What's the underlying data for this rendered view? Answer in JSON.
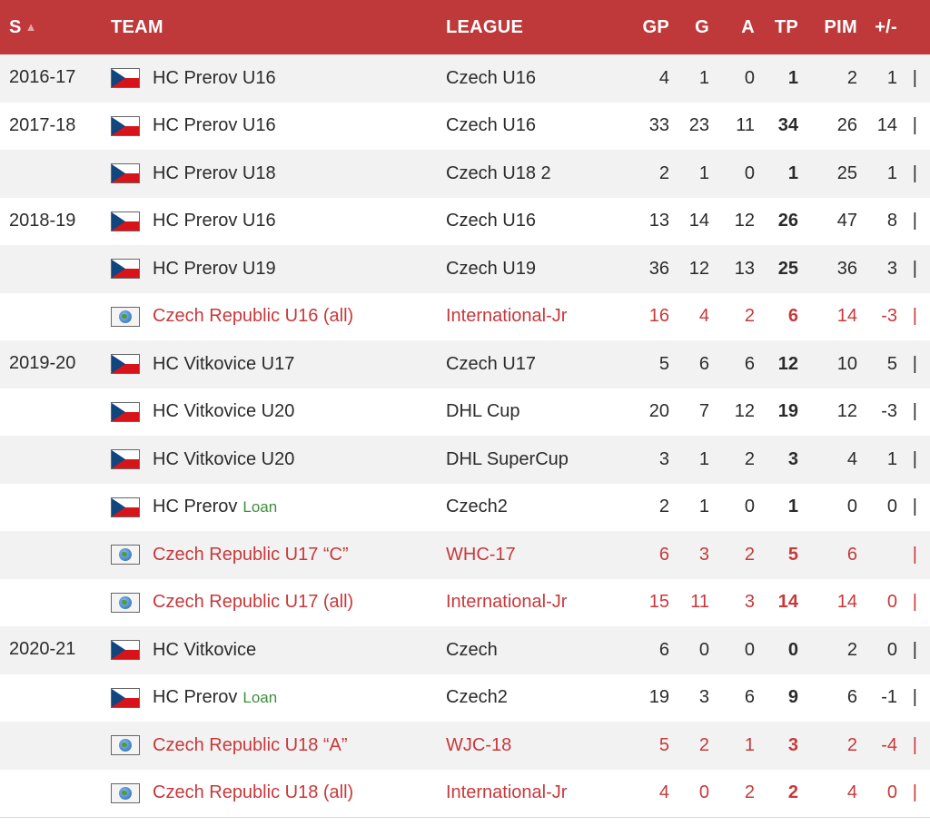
{
  "header": {
    "season": "S",
    "team": "TEAM",
    "league": "LEAGUE",
    "gp": "GP",
    "g": "G",
    "a": "A",
    "tp": "TP",
    "pim": "PIM",
    "plusminus": "+/-",
    "sort_icon": "sort-asc-icon"
  },
  "rows": [
    {
      "season": "2016-17",
      "flag": "czech-flag-icon",
      "team": "HC Prerov U16",
      "loan": "",
      "league": "Czech U16",
      "gp": "4",
      "g": "1",
      "a": "0",
      "tp": "1",
      "pim": "2",
      "pm": "1",
      "bar": "|"
    },
    {
      "season": "2017-18",
      "flag": "czech-flag-icon",
      "team": "HC Prerov U16",
      "loan": "",
      "league": "Czech U16",
      "gp": "33",
      "g": "23",
      "a": "11",
      "tp": "34",
      "pim": "26",
      "pm": "14",
      "bar": "|"
    },
    {
      "season": "",
      "flag": "czech-flag-icon",
      "team": "HC Prerov U18",
      "loan": "",
      "league": "Czech U18 2",
      "gp": "2",
      "g": "1",
      "a": "0",
      "tp": "1",
      "pim": "25",
      "pm": "1",
      "bar": "|"
    },
    {
      "season": "2018-19",
      "flag": "czech-flag-icon",
      "team": "HC Prerov U16",
      "loan": "",
      "league": "Czech U16",
      "gp": "13",
      "g": "14",
      "a": "12",
      "tp": "26",
      "pim": "47",
      "pm": "8",
      "bar": "|"
    },
    {
      "season": "",
      "flag": "czech-flag-icon",
      "team": "HC Prerov U19",
      "loan": "",
      "league": "Czech U19",
      "gp": "36",
      "g": "12",
      "a": "13",
      "tp": "25",
      "pim": "36",
      "pm": "3",
      "bar": "|"
    },
    {
      "season": "",
      "flag": "globe-icon",
      "team": "Czech Republic U16 (all)",
      "loan": "",
      "league": "International-Jr",
      "gp": "16",
      "g": "4",
      "a": "2",
      "tp": "6",
      "pim": "14",
      "pm": "-3",
      "bar": "|",
      "intl": true
    },
    {
      "season": "2019-20",
      "flag": "czech-flag-icon",
      "team": "HC Vitkovice U17",
      "loan": "",
      "league": "Czech U17",
      "gp": "5",
      "g": "6",
      "a": "6",
      "tp": "12",
      "pim": "10",
      "pm": "5",
      "bar": "|"
    },
    {
      "season": "",
      "flag": "czech-flag-icon",
      "team": "HC Vitkovice U20",
      "loan": "",
      "league": "DHL Cup",
      "gp": "20",
      "g": "7",
      "a": "12",
      "tp": "19",
      "pim": "12",
      "pm": "-3",
      "bar": "|"
    },
    {
      "season": "",
      "flag": "czech-flag-icon",
      "team": "HC Vitkovice U20",
      "loan": "",
      "league": "DHL SuperCup",
      "gp": "3",
      "g": "1",
      "a": "2",
      "tp": "3",
      "pim": "4",
      "pm": "1",
      "bar": "|"
    },
    {
      "season": "",
      "flag": "czech-flag-icon",
      "team": "HC Prerov",
      "loan": "Loan",
      "league": "Czech2",
      "gp": "2",
      "g": "1",
      "a": "0",
      "tp": "1",
      "pim": "0",
      "pm": "0",
      "bar": "|"
    },
    {
      "season": "",
      "flag": "globe-icon",
      "team": "Czech Republic U17 “C”",
      "loan": "",
      "league": "WHC-17",
      "gp": "6",
      "g": "3",
      "a": "2",
      "tp": "5",
      "pim": "6",
      "pm": "",
      "bar": "|",
      "intl": true
    },
    {
      "season": "",
      "flag": "globe-icon",
      "team": "Czech Republic U17 (all)",
      "loan": "",
      "league": "International-Jr",
      "gp": "15",
      "g": "11",
      "a": "3",
      "tp": "14",
      "pim": "14",
      "pm": "0",
      "bar": "|",
      "intl": true
    },
    {
      "season": "2020-21",
      "flag": "czech-flag-icon",
      "team": "HC Vitkovice",
      "loan": "",
      "league": "Czech",
      "gp": "6",
      "g": "0",
      "a": "0",
      "tp": "0",
      "pim": "2",
      "pm": "0",
      "bar": "|"
    },
    {
      "season": "",
      "flag": "czech-flag-icon",
      "team": "HC Prerov",
      "loan": "Loan",
      "league": "Czech2",
      "gp": "19",
      "g": "3",
      "a": "6",
      "tp": "9",
      "pim": "6",
      "pm": "-1",
      "bar": "|"
    },
    {
      "season": "",
      "flag": "globe-icon",
      "team": "Czech Republic U18 “A”",
      "loan": "",
      "league": "WJC-18",
      "gp": "5",
      "g": "2",
      "a": "1",
      "tp": "3",
      "pim": "2",
      "pm": "-4",
      "bar": "|",
      "intl": true
    },
    {
      "season": "",
      "flag": "globe-icon",
      "team": "Czech Republic U18 (all)",
      "loan": "",
      "league": "International-Jr",
      "gp": "4",
      "g": "0",
      "a": "2",
      "tp": "2",
      "pim": "4",
      "pm": "0",
      "bar": "|",
      "intl": true
    }
  ]
}
